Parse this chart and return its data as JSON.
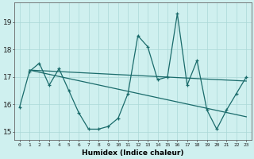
{
  "xlabel": "Humidex (Indice chaleur)",
  "background_color": "#cff0ef",
  "grid_color": "#aad8d8",
  "line_color": "#1a6b6b",
  "x_data": [
    0,
    1,
    2,
    3,
    4,
    5,
    6,
    7,
    8,
    9,
    10,
    11,
    12,
    13,
    14,
    15,
    16,
    17,
    18,
    19,
    20,
    21,
    22,
    23
  ],
  "y_main": [
    15.9,
    17.2,
    17.5,
    16.7,
    17.3,
    16.5,
    15.7,
    15.1,
    15.1,
    15.2,
    15.5,
    16.4,
    18.5,
    18.1,
    16.9,
    17.0,
    19.3,
    16.7,
    17.6,
    15.8,
    15.1,
    15.8,
    16.4,
    17.0
  ],
  "trend1_x": [
    1,
    23
  ],
  "trend1_y": [
    17.25,
    16.85
  ],
  "trend2_x": [
    1,
    23
  ],
  "trend2_y": [
    17.25,
    15.55
  ],
  "xlim": [
    -0.5,
    23.5
  ],
  "ylim": [
    14.7,
    19.7
  ],
  "yticks": [
    15,
    16,
    17,
    18,
    19
  ],
  "xticks": [
    0,
    1,
    2,
    3,
    4,
    5,
    6,
    7,
    8,
    9,
    10,
    11,
    12,
    13,
    14,
    15,
    16,
    17,
    18,
    19,
    20,
    21,
    22,
    23
  ]
}
